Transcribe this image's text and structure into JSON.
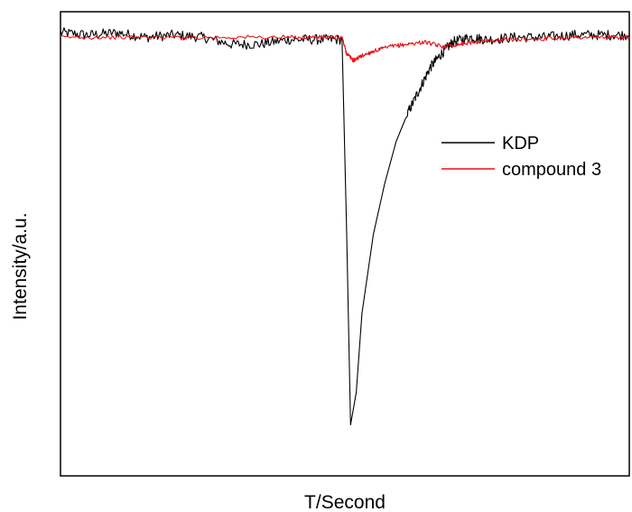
{
  "chart_data": {
    "type": "line",
    "xlabel": "T/Second",
    "ylabel": "Intensity/a.u.",
    "xlim": [
      0,
      100
    ],
    "ylim": [
      0,
      100
    ],
    "grid": false,
    "ticks_shown": false,
    "legend": {
      "placement": "right",
      "entries": [
        "KDP",
        "compound 3"
      ]
    },
    "series": [
      {
        "name": "KDP",
        "color": "#000000",
        "x": [
          0,
          5,
          10,
          15,
          20,
          25,
          30,
          35,
          40,
          45,
          49.5,
          50.3,
          51,
          52,
          53,
          55,
          57,
          59,
          61,
          63,
          65,
          67,
          69,
          72,
          75,
          80,
          85,
          90,
          95,
          100
        ],
        "y": [
          95.5,
          95,
          95.5,
          94.5,
          95,
          94.5,
          93,
          93,
          94,
          94,
          94,
          53,
          11,
          18,
          35,
          52,
          63,
          72,
          78,
          83,
          88,
          91,
          93.5,
          94.5,
          94,
          94.5,
          94.5,
          95,
          95,
          95
        ]
      },
      {
        "name": "compound 3",
        "color": "#e8111c",
        "x": [
          0,
          10,
          20,
          30,
          40,
          45,
          49.5,
          50.3,
          51.5,
          53,
          55,
          58,
          61,
          64,
          67,
          70,
          73,
          78,
          85,
          90,
          95,
          100
        ],
        "y": [
          94.5,
          94.5,
          94.5,
          94.5,
          94.5,
          94.5,
          94.5,
          91,
          89.5,
          90.5,
          91.5,
          92.5,
          93,
          93.5,
          92.5,
          93,
          93.5,
          94,
          94.2,
          94.5,
          94.5,
          94.5
        ]
      }
    ]
  }
}
